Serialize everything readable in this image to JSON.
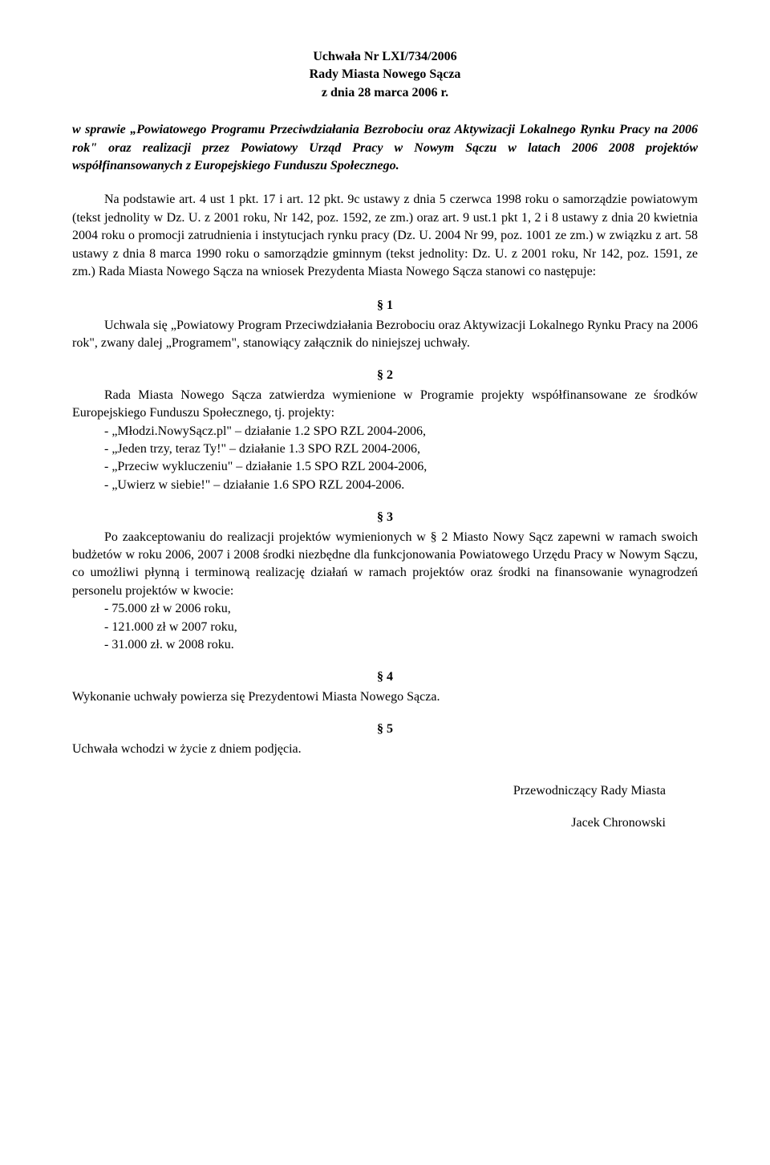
{
  "header": {
    "line1": "Uchwała Nr LXI/734/2006",
    "line2": "Rady Miasta Nowego Sącza",
    "line3": "z dnia 28 marca 2006 r."
  },
  "intro": {
    "prefix": "w sprawie ",
    "italic": "„Powiatowego Programu Przeciwdziałania Bezrobociu oraz Aktywizacji Lokalnego Rynku Pracy na 2006 rok\" oraz realizacji przez Powiatowy Urząd Pracy w Nowym Sączu w latach 2006 2008 projektów współfinansowanych z Europejskiego Funduszu Społecznego."
  },
  "legal_basis": "Na podstawie art. 4 ust 1 pkt. 17 i art. 12 pkt. 9c ustawy z dnia 5 czerwca 1998 roku o samorządzie powiatowym  (tekst jednolity w Dz. U. z 2001 roku, Nr 142, poz. 1592, ze zm.) oraz art. 9 ust.1 pkt 1, 2 i 8 ustawy z dnia 20 kwietnia 2004 roku o promocji zatrudnienia i instytucjach rynku pracy (Dz. U. 2004 Nr 99, poz. 1001 ze zm.) w związku z art. 58 ustawy z dnia 8 marca 1990 roku o samorządzie gminnym (tekst jednolity: Dz. U. z 2001 roku, Nr 142, poz. 1591, ze zm.) Rada Miasta Nowego Sącza na wniosek Prezydenta Miasta Nowego Sącza stanowi co następuje:",
  "sections": {
    "s1": {
      "num": "§ 1",
      "body": "Uchwala się „Powiatowy Program Przeciwdziałania Bezrobociu oraz Aktywizacji Lokalnego Rynku Pracy na 2006 rok\", zwany dalej „Programem\", stanowiący załącznik do niniejszej uchwały."
    },
    "s2": {
      "num": "§ 2",
      "intro": "Rada Miasta Nowego Sącza zatwierdza wymienione w Programie projekty współfinansowane ze środków Europejskiego Funduszu Społecznego, tj. projekty:",
      "items": [
        "„Młodzi.NowySącz.pl\" – działanie 1.2 SPO RZL 2004-2006,",
        "„Jeden trzy, teraz Ty!\" – działanie 1.3 SPO RZL 2004-2006,",
        "„Przeciw wykluczeniu\" – działanie 1.5 SPO RZL 2004-2006,",
        "„Uwierz w siebie!\" – działanie 1.6 SPO RZL 2004-2006."
      ]
    },
    "s3": {
      "num": "§ 3",
      "intro": "Po zaakceptowaniu do realizacji projektów wymienionych w § 2  Miasto Nowy Sącz zapewni w ramach swoich budżetów w roku 2006, 2007 i 2008 środki niezbędne dla funkcjonowania Powiatowego Urzędu Pracy w Nowym Sączu, co umożliwi płynną i terminową realizację działań w ramach projektów oraz środki na finansowanie wynagrodzeń personelu projektów w kwocie:",
      "items": [
        "75.000 zł w 2006 roku,",
        "121.000 zł w 2007 roku,",
        "31.000 zł. w 2008 roku."
      ]
    },
    "s4": {
      "num": "§ 4",
      "body": "Wykonanie uchwały powierza się Prezydentowi Miasta Nowego Sącza."
    },
    "s5": {
      "num": "§ 5",
      "body": "Uchwała wchodzi w życie z dniem podjęcia."
    }
  },
  "signature": {
    "title": "Przewodniczący Rady Miasta",
    "name": "Jacek Chronowski"
  }
}
